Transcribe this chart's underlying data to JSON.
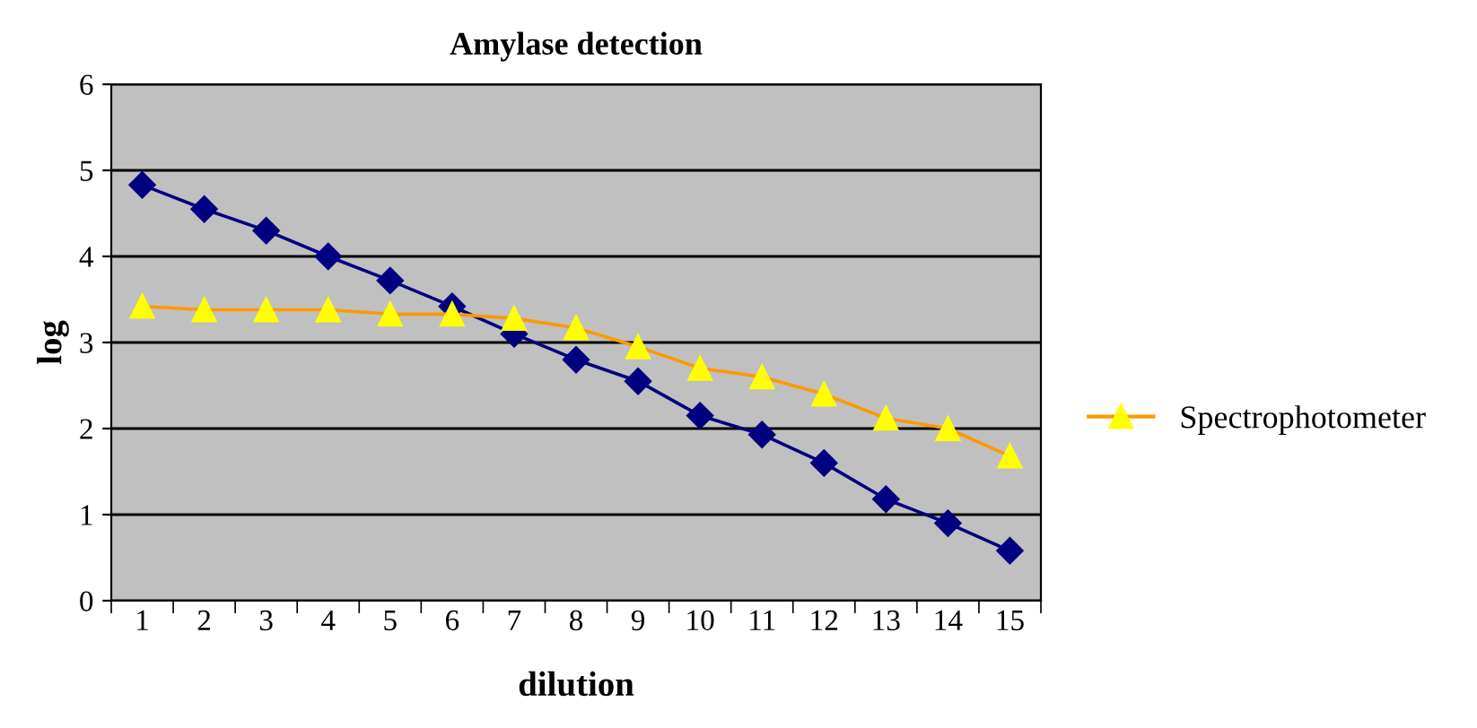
{
  "chart_data": {
    "type": "line",
    "title": "Amylase detection",
    "xlabel": "dilution",
    "ylabel": "log",
    "categories": [
      "1",
      "2",
      "3",
      "4",
      "5",
      "6",
      "7",
      "8",
      "9",
      "10",
      "11",
      "12",
      "13",
      "14",
      "15"
    ],
    "series": [
      {
        "color": "#000080",
        "marker": "diamond",
        "values": [
          4.83,
          4.55,
          4.3,
          4.0,
          3.72,
          3.42,
          3.1,
          2.8,
          2.55,
          2.15,
          1.93,
          1.6,
          1.18,
          0.9,
          0.58
        ]
      },
      {
        "name": "Spectrophotometer",
        "color": "#ff9900",
        "colors": [
          "#ffff00",
          "#ffff00",
          "#ffff00",
          "#ffff00",
          "#ffff00",
          "#ffff00",
          "#ffff00",
          "#ffff00",
          "#ffff00",
          "#ffff00",
          "#ffff00",
          "#ffff00",
          "#ffff00",
          "#ffff00",
          "#ffff00"
        ],
        "marker": "triangle",
        "values": [
          3.42,
          3.38,
          3.38,
          3.38,
          3.33,
          3.33,
          3.28,
          3.17,
          2.95,
          2.7,
          2.6,
          2.4,
          2.12,
          2.0,
          1.68
        ]
      }
    ],
    "ylim": [
      0,
      6
    ],
    "yticks": [
      0,
      1,
      2,
      3,
      4,
      5,
      6
    ],
    "grid": "y",
    "legend": "right"
  }
}
